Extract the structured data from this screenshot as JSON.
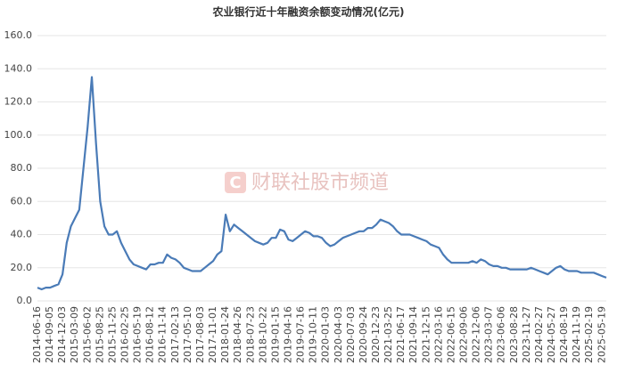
{
  "chart_data": {
    "type": "line",
    "title": "农业银行近十年融资余额变动情况(亿元)",
    "watermark": "财联社股市频道",
    "categories": [
      "2014-06-16",
      null,
      null,
      "2014-09-05",
      null,
      null,
      "2014-12-03",
      null,
      null,
      "2015-03-09",
      null,
      null,
      "2015-06-02",
      null,
      null,
      "2015-08-25",
      null,
      null,
      "2015-11-25",
      null,
      null,
      "2016-02-25",
      null,
      null,
      "2016-05-19",
      null,
      null,
      "2016-08-12",
      null,
      null,
      "2016-11-14",
      null,
      null,
      "2017-02-13",
      null,
      null,
      "2017-05-10",
      null,
      null,
      "2017-08-03",
      null,
      null,
      "2017-11-01",
      null,
      null,
      "2018-01-24",
      null,
      null,
      "2018-04-26",
      null,
      null,
      "2018-07-23",
      null,
      null,
      "2018-10-22",
      null,
      null,
      "2019-01-15",
      null,
      null,
      "2019-04-16",
      null,
      null,
      "2019-07-16",
      null,
      null,
      "2019-10-11",
      null,
      null,
      "2020-01-03",
      null,
      null,
      "2020-04-03",
      null,
      null,
      "2020-07-03",
      null,
      null,
      "2020-09-24",
      null,
      null,
      "2020-12-23",
      null,
      null,
      "2021-03-25",
      null,
      null,
      "2021-06-17",
      null,
      null,
      "2021-09-14",
      null,
      null,
      "2021-12-15",
      null,
      null,
      "2022-03-16",
      null,
      null,
      "2022-06-15",
      null,
      null,
      "2022-09-06",
      null,
      null,
      "2022-12-06",
      null,
      null,
      "2023-03-07",
      null,
      null,
      "2023-06-06",
      null,
      null,
      "2023-08-28",
      null,
      null,
      "2023-11-27",
      null,
      null,
      "2024-02-27",
      null,
      null,
      "2024-05-27",
      null,
      null,
      "2024-08-19",
      null,
      null,
      "2024-11-19",
      null,
      null,
      "2025-02-19",
      null,
      null,
      "2025-05-19",
      null
    ],
    "values": [
      8,
      7,
      8,
      8,
      9,
      10,
      16,
      35,
      45,
      50,
      55,
      80,
      105,
      135,
      95,
      60,
      45,
      40,
      40,
      42,
      35,
      30,
      25,
      22,
      21,
      20,
      19,
      22,
      22,
      23,
      23,
      28,
      26,
      25,
      23,
      20,
      19,
      18,
      18,
      18,
      20,
      22,
      24,
      28,
      30,
      52,
      42,
      46,
      44,
      42,
      40,
      38,
      36,
      35,
      34,
      35,
      38,
      38,
      43,
      42,
      37,
      36,
      38,
      40,
      42,
      41,
      39,
      39,
      38,
      35,
      33,
      34,
      36,
      38,
      39,
      40,
      41,
      42,
      42,
      44,
      44,
      46,
      49,
      48,
      47,
      45,
      42,
      40,
      40,
      40,
      39,
      38,
      37,
      36,
      34,
      33,
      32,
      28,
      25,
      23,
      23,
      23,
      23,
      23,
      24,
      23,
      25,
      24,
      22,
      21,
      21,
      20,
      20,
      19,
      19,
      19,
      19,
      19,
      20,
      19,
      18,
      17,
      16,
      18,
      20,
      21,
      19,
      18,
      18,
      18,
      17,
      17,
      17,
      17,
      16,
      15,
      14
    ],
    "color": "#4a7bb7",
    "ylim": [
      0,
      160
    ],
    "yticks": [
      {
        "value": 0,
        "label": "0.0"
      },
      {
        "value": 20,
        "label": "20.0"
      },
      {
        "value": 40,
        "label": "40.0"
      },
      {
        "value": 60,
        "label": "60.0"
      },
      {
        "value": 80,
        "label": "80.0"
      },
      {
        "value": 100,
        "label": "100.0"
      },
      {
        "value": 120,
        "label": "120.0"
      },
      {
        "value": 140,
        "label": "140.0"
      },
      {
        "value": 160,
        "label": "160.0"
      }
    ],
    "grid": true
  }
}
